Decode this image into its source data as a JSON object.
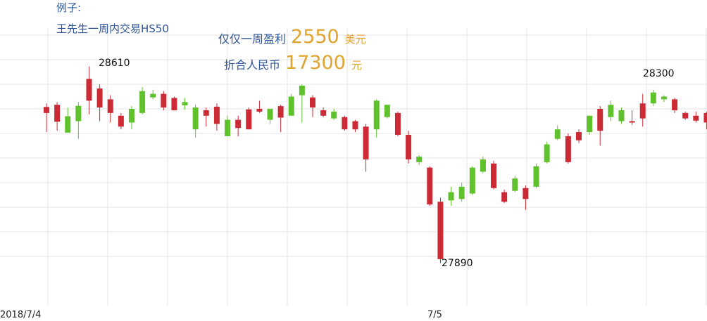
{
  "header": {
    "example_label": "例子:",
    "title": "王先生一周内交易HS50",
    "profit_label": "仅仅一周盈利",
    "profit_value": "2550",
    "profit_unit": "美元",
    "rmb_label": "折合人民币",
    "rmb_value": "17300",
    "rmb_unit": "元"
  },
  "colors": {
    "up": "#5fc22c",
    "down": "#cc2a35",
    "grid": "#e6e6e6",
    "text_blue": "#2f5597",
    "highlight": "#e0a32e"
  },
  "chart_data": {
    "type": "candlestick",
    "ylim": [
      27825,
      28725
    ],
    "grid": true,
    "x_tick_labels": [
      "2018/7/4",
      "7/5"
    ],
    "annotations": [
      {
        "label": "28610",
        "value": 28610
      },
      {
        "label": "28300",
        "value": 28300
      },
      {
        "label": "27890",
        "value": 27890
      }
    ],
    "candles": [
      {
        "o": 28462,
        "c": 28440,
        "h": 28475,
        "l": 28370,
        "d": "down"
      },
      {
        "o": 28470,
        "c": 28408,
        "h": 28480,
        "l": 28375,
        "d": "down"
      },
      {
        "o": 28368,
        "c": 28428,
        "h": 28460,
        "l": 28368,
        "d": "up"
      },
      {
        "o": 28410,
        "c": 28466,
        "h": 28480,
        "l": 28345,
        "d": "up"
      },
      {
        "o": 28565,
        "c": 28485,
        "h": 28610,
        "l": 28435,
        "d": "down"
      },
      {
        "o": 28530,
        "c": 28460,
        "h": 28545,
        "l": 28410,
        "d": "down"
      },
      {
        "o": 28490,
        "c": 28440,
        "h": 28505,
        "l": 28405,
        "d": "down"
      },
      {
        "o": 28430,
        "c": 28390,
        "h": 28440,
        "l": 28380,
        "d": "down"
      },
      {
        "o": 28405,
        "c": 28455,
        "h": 28465,
        "l": 28380,
        "d": "up"
      },
      {
        "o": 28440,
        "c": 28520,
        "h": 28535,
        "l": 28435,
        "d": "up"
      },
      {
        "o": 28497,
        "c": 28510,
        "h": 28525,
        "l": 28490,
        "d": "up"
      },
      {
        "o": 28510,
        "c": 28460,
        "h": 28520,
        "l": 28450,
        "d": "down"
      },
      {
        "o": 28495,
        "c": 28450,
        "h": 28500,
        "l": 28450,
        "d": "down"
      },
      {
        "o": 28480,
        "c": 28468,
        "h": 28495,
        "l": 28452,
        "d": "up"
      },
      {
        "o": 28460,
        "c": 28380,
        "h": 28470,
        "l": 28350,
        "d": "up"
      },
      {
        "o": 28450,
        "c": 28430,
        "h": 28460,
        "l": 28390,
        "d": "down"
      },
      {
        "o": 28463,
        "c": 28400,
        "h": 28475,
        "l": 28375,
        "d": "down"
      },
      {
        "o": 28355,
        "c": 28415,
        "h": 28430,
        "l": 28355,
        "d": "up"
      },
      {
        "o": 28415,
        "c": 28385,
        "h": 28430,
        "l": 28355,
        "d": "down"
      },
      {
        "o": 28453,
        "c": 28380,
        "h": 28460,
        "l": 28380,
        "d": "down"
      },
      {
        "o": 28455,
        "c": 28445,
        "h": 28485,
        "l": 28440,
        "d": "down"
      },
      {
        "o": 28415,
        "c": 28455,
        "h": 28455,
        "l": 28400,
        "d": "up"
      },
      {
        "o": 28465,
        "c": 28423,
        "h": 28470,
        "l": 28370,
        "d": "down"
      },
      {
        "o": 28430,
        "c": 28500,
        "h": 28510,
        "l": 28430,
        "d": "up"
      },
      {
        "o": 28540,
        "c": 28505,
        "h": 28545,
        "l": 28405,
        "d": "up"
      },
      {
        "o": 28497,
        "c": 28460,
        "h": 28505,
        "l": 28425,
        "d": "down"
      },
      {
        "o": 28450,
        "c": 28430,
        "h": 28460,
        "l": 28425,
        "d": "down"
      },
      {
        "o": 28420,
        "c": 28445,
        "h": 28455,
        "l": 28415,
        "d": "up"
      },
      {
        "o": 28425,
        "c": 28380,
        "h": 28430,
        "l": 28375,
        "d": "down"
      },
      {
        "o": 28410,
        "c": 28380,
        "h": 28415,
        "l": 28370,
        "d": "down"
      },
      {
        "o": 28390,
        "c": 28270,
        "h": 28400,
        "l": 28225,
        "d": "down"
      },
      {
        "o": 28380,
        "c": 28485,
        "h": 28490,
        "l": 28350,
        "d": "up"
      },
      {
        "o": 28425,
        "c": 28470,
        "h": 28470,
        "l": 28420,
        "d": "up"
      },
      {
        "o": 28440,
        "c": 28360,
        "h": 28445,
        "l": 28355,
        "d": "down"
      },
      {
        "o": 28360,
        "c": 28270,
        "h": 28375,
        "l": 28255,
        "d": "down"
      },
      {
        "o": 28280,
        "c": 28260,
        "h": 28285,
        "l": 28250,
        "d": "up"
      },
      {
        "o": 28240,
        "c": 28105,
        "h": 28245,
        "l": 28100,
        "d": "down"
      },
      {
        "o": 28115,
        "c": 27905,
        "h": 28130,
        "l": 27890,
        "d": "down"
      },
      {
        "o": 28150,
        "c": 28120,
        "h": 28170,
        "l": 28100,
        "d": "up"
      },
      {
        "o": 28170,
        "c": 28125,
        "h": 28185,
        "l": 28115,
        "d": "up"
      },
      {
        "o": 28240,
        "c": 28145,
        "h": 28245,
        "l": 28140,
        "d": "up"
      },
      {
        "o": 28225,
        "c": 28270,
        "h": 28280,
        "l": 28220,
        "d": "up"
      },
      {
        "o": 28255,
        "c": 28165,
        "h": 28265,
        "l": 28160,
        "d": "down"
      },
      {
        "o": 28150,
        "c": 28115,
        "h": 28160,
        "l": 28110,
        "d": "down"
      },
      {
        "o": 28200,
        "c": 28155,
        "h": 28210,
        "l": 28150,
        "d": "up"
      },
      {
        "o": 28165,
        "c": 28125,
        "h": 28175,
        "l": 28085,
        "d": "down"
      },
      {
        "o": 28245,
        "c": 28170,
        "h": 28255,
        "l": 28165,
        "d": "up"
      },
      {
        "o": 28260,
        "c": 28325,
        "h": 28335,
        "l": 28255,
        "d": "up"
      },
      {
        "o": 28345,
        "c": 28380,
        "h": 28395,
        "l": 28340,
        "d": "up"
      },
      {
        "o": 28355,
        "c": 28260,
        "h": 28365,
        "l": 28255,
        "d": "down"
      },
      {
        "o": 28370,
        "c": 28340,
        "h": 28380,
        "l": 28330,
        "d": "down"
      },
      {
        "o": 28370,
        "c": 28430,
        "h": 28430,
        "l": 28360,
        "d": "up"
      },
      {
        "o": 28455,
        "c": 28375,
        "h": 28465,
        "l": 28320,
        "d": "down"
      },
      {
        "o": 28425,
        "c": 28470,
        "h": 28485,
        "l": 28410,
        "d": "up"
      },
      {
        "o": 28450,
        "c": 28410,
        "h": 28460,
        "l": 28400,
        "d": "up"
      },
      {
        "o": 28410,
        "c": 28405,
        "h": 28450,
        "l": 28395,
        "d": "down"
      },
      {
        "o": 28475,
        "c": 28420,
        "h": 28510,
        "l": 28390,
        "d": "down"
      },
      {
        "o": 28475,
        "c": 28515,
        "h": 28525,
        "l": 28465,
        "d": "up"
      },
      {
        "o": 28490,
        "c": 28500,
        "h": 28505,
        "l": 28480,
        "d": "up"
      },
      {
        "o": 28490,
        "c": 28450,
        "h": 28495,
        "l": 28440,
        "d": "down"
      },
      {
        "o": 28440,
        "c": 28420,
        "h": 28445,
        "l": 28415,
        "d": "down"
      },
      {
        "o": 28430,
        "c": 28412,
        "h": 28445,
        "l": 28405,
        "d": "down"
      },
      {
        "o": 28440,
        "c": 28405,
        "h": 28445,
        "l": 28380,
        "d": "down"
      }
    ]
  }
}
